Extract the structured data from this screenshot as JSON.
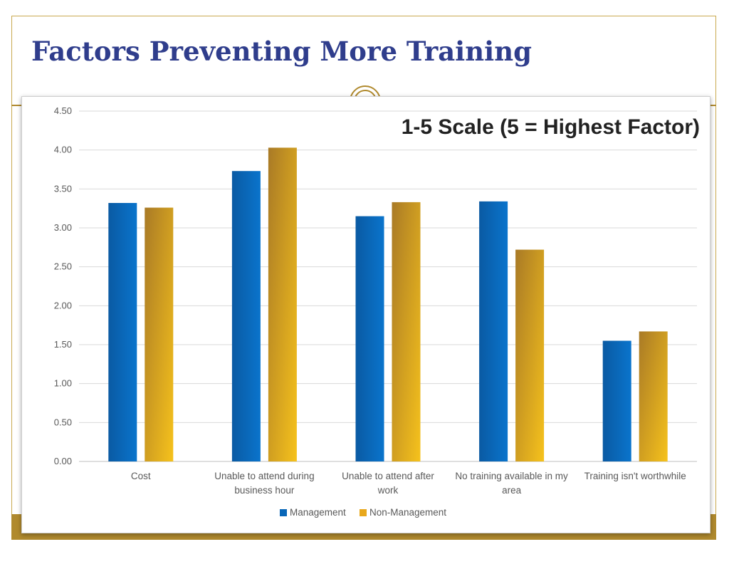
{
  "slide": {
    "title": "Factors Preventing More Training"
  },
  "chart_data": {
    "type": "bar",
    "annotation": "1-5 Scale (5 = Highest Factor)",
    "categories": [
      [
        "Cost"
      ],
      [
        "Unable to attend during",
        "business hour"
      ],
      [
        "Unable to attend after",
        "work"
      ],
      [
        "No training available in my",
        "area"
      ],
      [
        "Training isn't worthwhile"
      ]
    ],
    "series": [
      {
        "name": "Management",
        "values": [
          3.32,
          3.73,
          3.15,
          3.34,
          1.55
        ],
        "color": "#0866b8"
      },
      {
        "name": "Non-Management",
        "values": [
          3.26,
          4.03,
          3.33,
          2.72,
          1.67
        ],
        "color": "#e8a81c"
      }
    ],
    "ylim": [
      0,
      4.5
    ],
    "yticks": [
      "0.00",
      "0.50",
      "1.00",
      "1.50",
      "2.00",
      "2.50",
      "3.00",
      "3.50",
      "4.00",
      "4.50"
    ],
    "grid": true,
    "legend_position": "bottom"
  }
}
